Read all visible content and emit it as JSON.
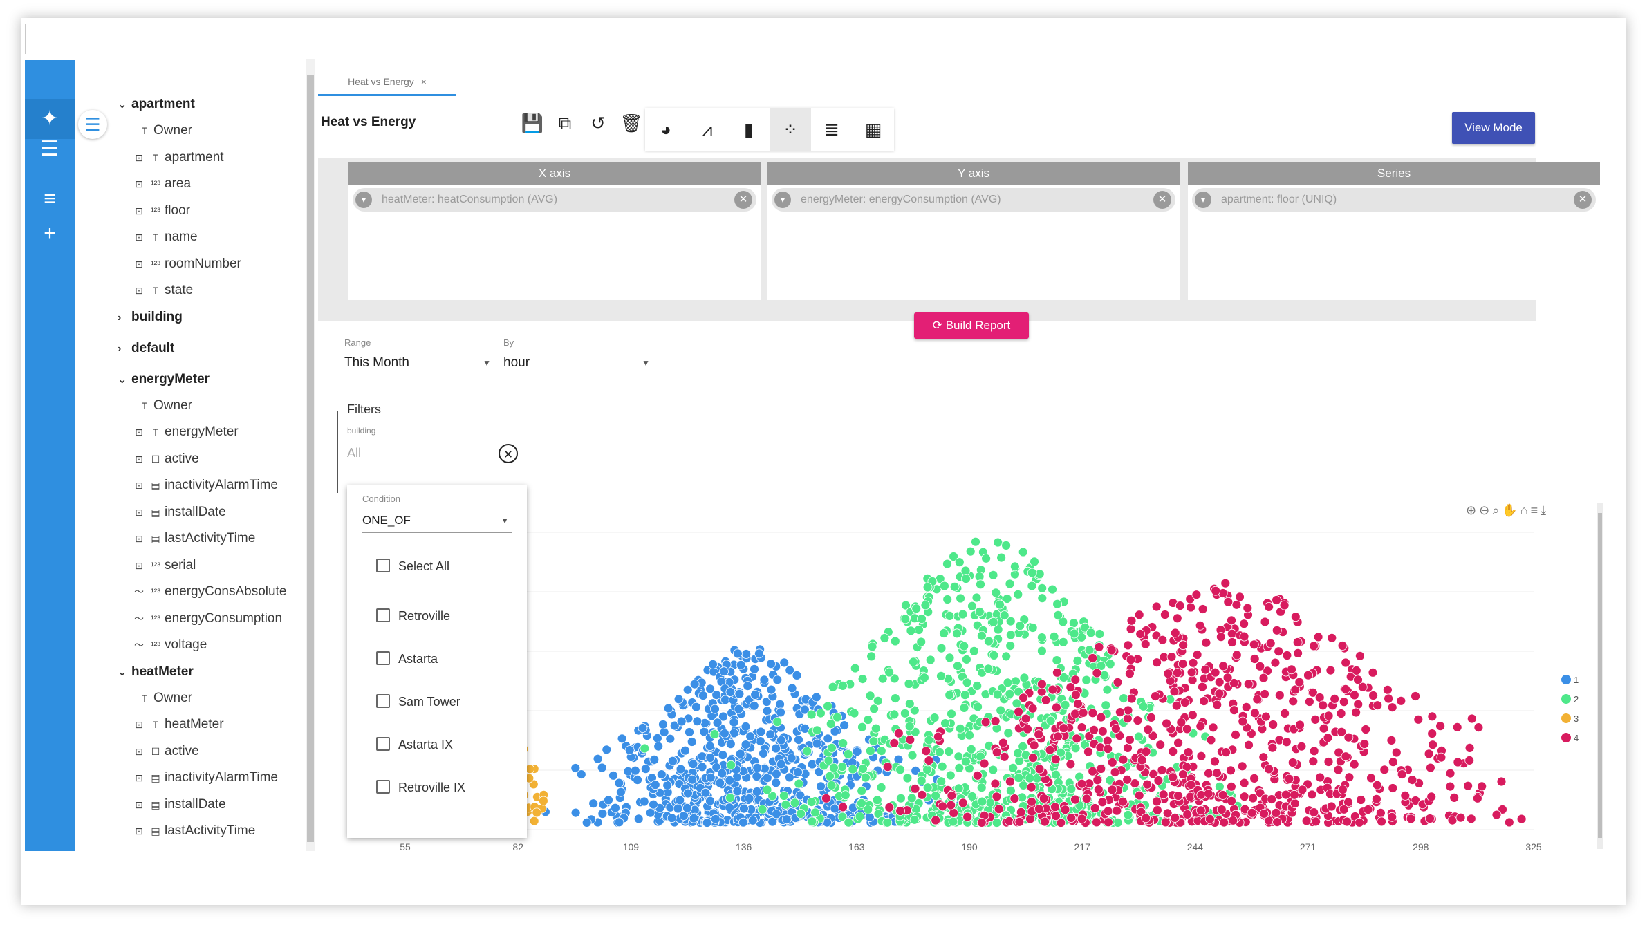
{
  "sidebar_tree": [
    {
      "type": "group",
      "label": "apartment",
      "expanded": true,
      "fields": [
        {
          "label": "Owner",
          "type_icon": "T",
          "key": false
        },
        {
          "label": "apartment",
          "type_icon": "T",
          "key": true
        },
        {
          "label": "area",
          "type_icon": "123",
          "key": true
        },
        {
          "label": "floor",
          "type_icon": "123",
          "key": true
        },
        {
          "label": "name",
          "type_icon": "T",
          "key": true
        },
        {
          "label": "roomNumber",
          "type_icon": "123",
          "key": true
        },
        {
          "label": "state",
          "type_icon": "T",
          "key": true
        }
      ]
    },
    {
      "type": "group",
      "label": "building",
      "expanded": false,
      "fields": []
    },
    {
      "type": "group",
      "label": "default",
      "expanded": false,
      "fields": []
    },
    {
      "type": "group",
      "label": "energyMeter",
      "expanded": true,
      "fields": [
        {
          "label": "Owner",
          "type_icon": "T",
          "key": false
        },
        {
          "label": "energyMeter",
          "type_icon": "T",
          "key": true
        },
        {
          "label": "active",
          "type_icon": "bool",
          "key": true
        },
        {
          "label": "inactivityAlarmTime",
          "type_icon": "cal",
          "key": true
        },
        {
          "label": "installDate",
          "type_icon": "cal",
          "key": true
        },
        {
          "label": "lastActivityTime",
          "type_icon": "cal",
          "key": true
        },
        {
          "label": "serial",
          "type_icon": "123",
          "key": true
        },
        {
          "label": "energyConsAbsolute",
          "type_icon": "123",
          "key": false,
          "timeseries": true
        },
        {
          "label": "energyConsumption",
          "type_icon": "123",
          "key": false,
          "timeseries": true
        },
        {
          "label": "voltage",
          "type_icon": "123",
          "key": false,
          "timeseries": true
        }
      ]
    },
    {
      "type": "group",
      "label": "heatMeter",
      "expanded": true,
      "fields": [
        {
          "label": "Owner",
          "type_icon": "T",
          "key": false
        },
        {
          "label": "heatMeter",
          "type_icon": "T",
          "key": true
        },
        {
          "label": "active",
          "type_icon": "bool",
          "key": true
        },
        {
          "label": "inactivityAlarmTime",
          "type_icon": "cal",
          "key": true
        },
        {
          "label": "installDate",
          "type_icon": "cal",
          "key": true
        },
        {
          "label": "lastActivityTime",
          "type_icon": "cal",
          "key": true
        }
      ]
    }
  ],
  "tab": {
    "label": "Heat vs Energy",
    "close": "×"
  },
  "report_title": "Heat vs Energy",
  "view_mode_label": "View Mode",
  "axes": [
    {
      "header": "X axis",
      "chip": "heatMeter: heatConsumption (AVG)"
    },
    {
      "header": "Y axis",
      "chip": "energyMeter: energyConsumption (AVG)"
    },
    {
      "header": "Series",
      "chip": "apartment: floor (UNIQ)"
    }
  ],
  "build_report_label": "Build Report",
  "range": {
    "label": "Range",
    "value": "This Month"
  },
  "by": {
    "label": "By",
    "value": "hour"
  },
  "filters": {
    "legend": "Filters",
    "field_label": "building",
    "field_value": "All"
  },
  "dropdown": {
    "condition_label": "Condition",
    "condition_value": "ONE_OF",
    "options": [
      "Select All",
      "Retroville",
      "Astarta",
      "Sam Tower",
      "Astarta IX",
      "Retroville IX"
    ]
  },
  "chart_data": {
    "type": "scatter",
    "x_ticks": [
      "55",
      "82",
      "109",
      "136",
      "163",
      "190",
      "217",
      "244",
      "271",
      "298",
      "325"
    ],
    "xlim": [
      55,
      325
    ],
    "series": [
      {
        "name": "1",
        "color": "#3b8fe6",
        "x_center": 137,
        "x_spread": 17,
        "y_min": 0,
        "y_max": 0.62,
        "count": 700
      },
      {
        "name": "2",
        "color": "#4ee88a",
        "x_center": 195,
        "x_spread": 22,
        "y_min": 0,
        "y_max": 1.0,
        "count": 780
      },
      {
        "name": "3",
        "color": "#f2b134",
        "x_center": 83,
        "x_spread": 3,
        "y_min": 0,
        "y_max": 0.35,
        "count": 24
      },
      {
        "name": "4",
        "color": "#d81b5e",
        "x_center": 250,
        "x_spread": 30,
        "y_min": 0,
        "y_max": 0.85,
        "count": 780
      }
    ],
    "legend": [
      "1",
      "2",
      "3",
      "4"
    ]
  },
  "icons": {
    "rail": [
      "sparkle-icon",
      "tune-icon",
      "list-icon",
      "plus-icon"
    ],
    "toolbar": [
      "save-icon",
      "copy-icon",
      "history-icon",
      "delete-icon"
    ],
    "chart_types": [
      "pie-chart-icon",
      "line-chart-icon",
      "bar-chart-icon",
      "scatter-chart-icon",
      "ranged-bar-icon",
      "table-icon"
    ]
  }
}
